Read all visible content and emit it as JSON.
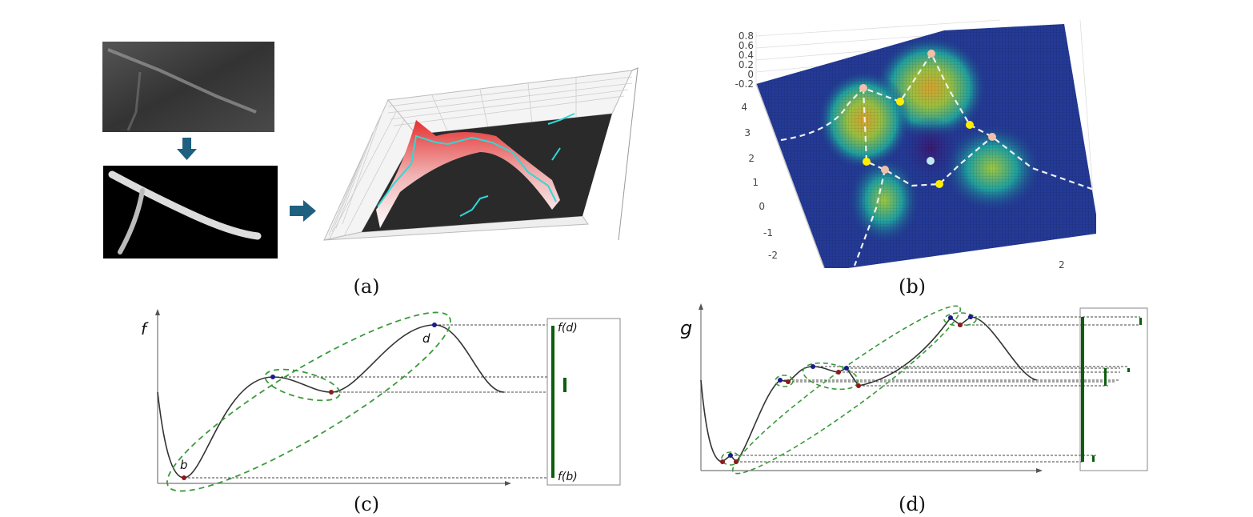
{
  "panels": {
    "a": {
      "caption": "(a)"
    },
    "b": {
      "caption": "(b)",
      "z_ticks": [
        "0.8",
        "0.6",
        "0.4",
        "0.2",
        "0",
        "-0.2"
      ],
      "y_ticks": [
        "4",
        "3",
        "2",
        "1",
        "0",
        "-1",
        "-2"
      ],
      "x_ticks": [
        "2"
      ]
    },
    "c": {
      "caption": "(c)",
      "axis_label": "f",
      "point_b": "b",
      "point_d": "d",
      "bar_top": "f(d)",
      "bar_bottom": "f(b)"
    },
    "d": {
      "caption": "(d)",
      "axis_label": "g"
    }
  },
  "colors": {
    "arrow": "#1f5f80",
    "persistence_bar": "#0b5e0b",
    "pairing_ellipse": "#3a9a3a",
    "max_point": "#1a1a8c",
    "min_point": "#8c1a1a",
    "ridge": "#30d8d8",
    "saddle": "#ffee00",
    "peak": "#f2c0a8",
    "minimum": "#bfe8f0"
  }
}
